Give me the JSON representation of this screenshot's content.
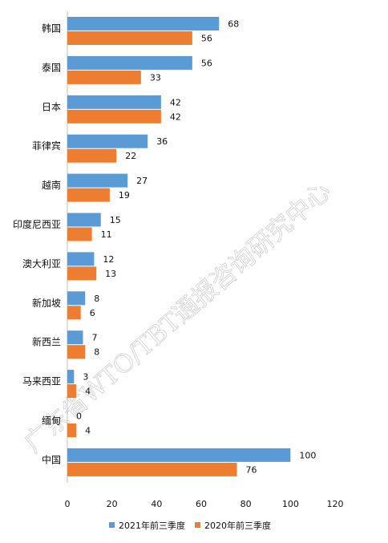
{
  "watermark": "广东省WTO/TBT通报咨询研究中心",
  "chart_data": {
    "type": "bar",
    "orientation": "horizontal",
    "categories": [
      "韩国",
      "泰国",
      "日本",
      "菲律宾",
      "越南",
      "印度尼西亚",
      "澳大利亚",
      "新加坡",
      "新西兰",
      "马来西亚",
      "缅甸",
      "中国"
    ],
    "series": [
      {
        "name": "2021年前三季度",
        "color": "#5B9BD5",
        "values": [
          68,
          56,
          42,
          36,
          27,
          15,
          12,
          8,
          7,
          3,
          0,
          100
        ]
      },
      {
        "name": "2020年前三季度",
        "color": "#ED7D31",
        "values": [
          56,
          33,
          42,
          22,
          19,
          11,
          13,
          6,
          8,
          4,
          4,
          76
        ]
      }
    ],
    "xlim": [
      0,
      120
    ],
    "xticks": [
      0,
      20,
      40,
      60,
      80,
      100,
      120
    ],
    "grid": false,
    "legend_position": "bottom"
  }
}
